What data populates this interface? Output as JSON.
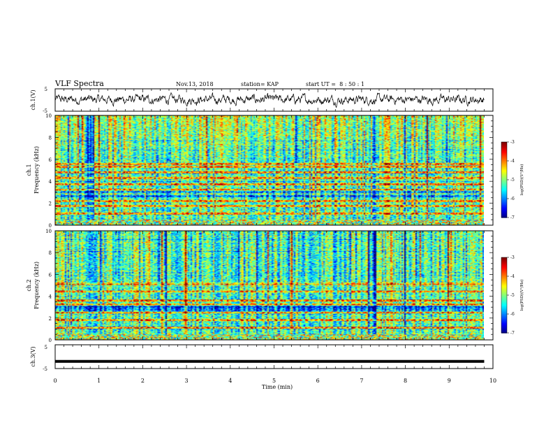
{
  "header": {
    "title": "VLF Spectra",
    "date": "Nov.13, 2018",
    "station": "station= KAP",
    "start": "start UT =  8 : 50 : 1"
  },
  "chart_data": [
    {
      "type": "line",
      "ylabel": "ch.1(V)",
      "ylim": [
        -5,
        5
      ],
      "y_ticks": [
        "5",
        "-5"
      ],
      "xlim": [
        0,
        10
      ],
      "description_hidden": true,
      "series": [
        {
          "style": "noisy",
          "mean": 0.2,
          "amplitude": 2.2
        }
      ]
    },
    {
      "type": "heatmap",
      "panel_label": "ch.1",
      "ylabel": "Frequency (kHz)",
      "ylim": [
        0,
        10
      ],
      "y_ticks": [
        "0",
        "2",
        "4",
        "6",
        "8",
        "10"
      ],
      "xlim": [
        0,
        9.8
      ],
      "colorbar": {
        "label": "log(PSD)(V²/Hz)",
        "ticks": [
          "-3",
          "-4",
          "-5",
          "-6",
          "-7"
        ],
        "range": [
          -7,
          -3
        ]
      },
      "bands": [
        0.3,
        1.0,
        1.7,
        2.2,
        2.8,
        3.2,
        3.7,
        4.3,
        4.8,
        5.3,
        5.6
      ]
    },
    {
      "type": "heatmap",
      "panel_label": "ch.2",
      "ylabel": "Frequency (kHz)",
      "ylim": [
        0,
        10
      ],
      "y_ticks": [
        "0",
        "2",
        "4",
        "6",
        "8",
        "10"
      ],
      "xlim": [
        0,
        9.8
      ],
      "colorbar": {
        "label": "log(PSD)(V²/Hz)",
        "ticks": [
          "-3",
          "-4",
          "-5",
          "-6",
          "-7"
        ],
        "range": [
          -7,
          -3
        ]
      },
      "bands": [
        0.3,
        1.1,
        1.8,
        2.5,
        3.2,
        3.6,
        4.4,
        5.1
      ]
    },
    {
      "type": "line",
      "ylabel": "ch.3(V)",
      "ylim": [
        -5,
        5
      ],
      "y_ticks": [
        "5",
        "-5"
      ],
      "xlim": [
        0,
        10
      ],
      "series": [
        {
          "style": "flat",
          "value": -2
        }
      ]
    }
  ],
  "xaxis": {
    "label": "Time (min)",
    "ticks": [
      "0",
      "1",
      "2",
      "3",
      "4",
      "5",
      "6",
      "7",
      "8",
      "9",
      "10"
    ],
    "range": [
      0,
      10
    ]
  }
}
